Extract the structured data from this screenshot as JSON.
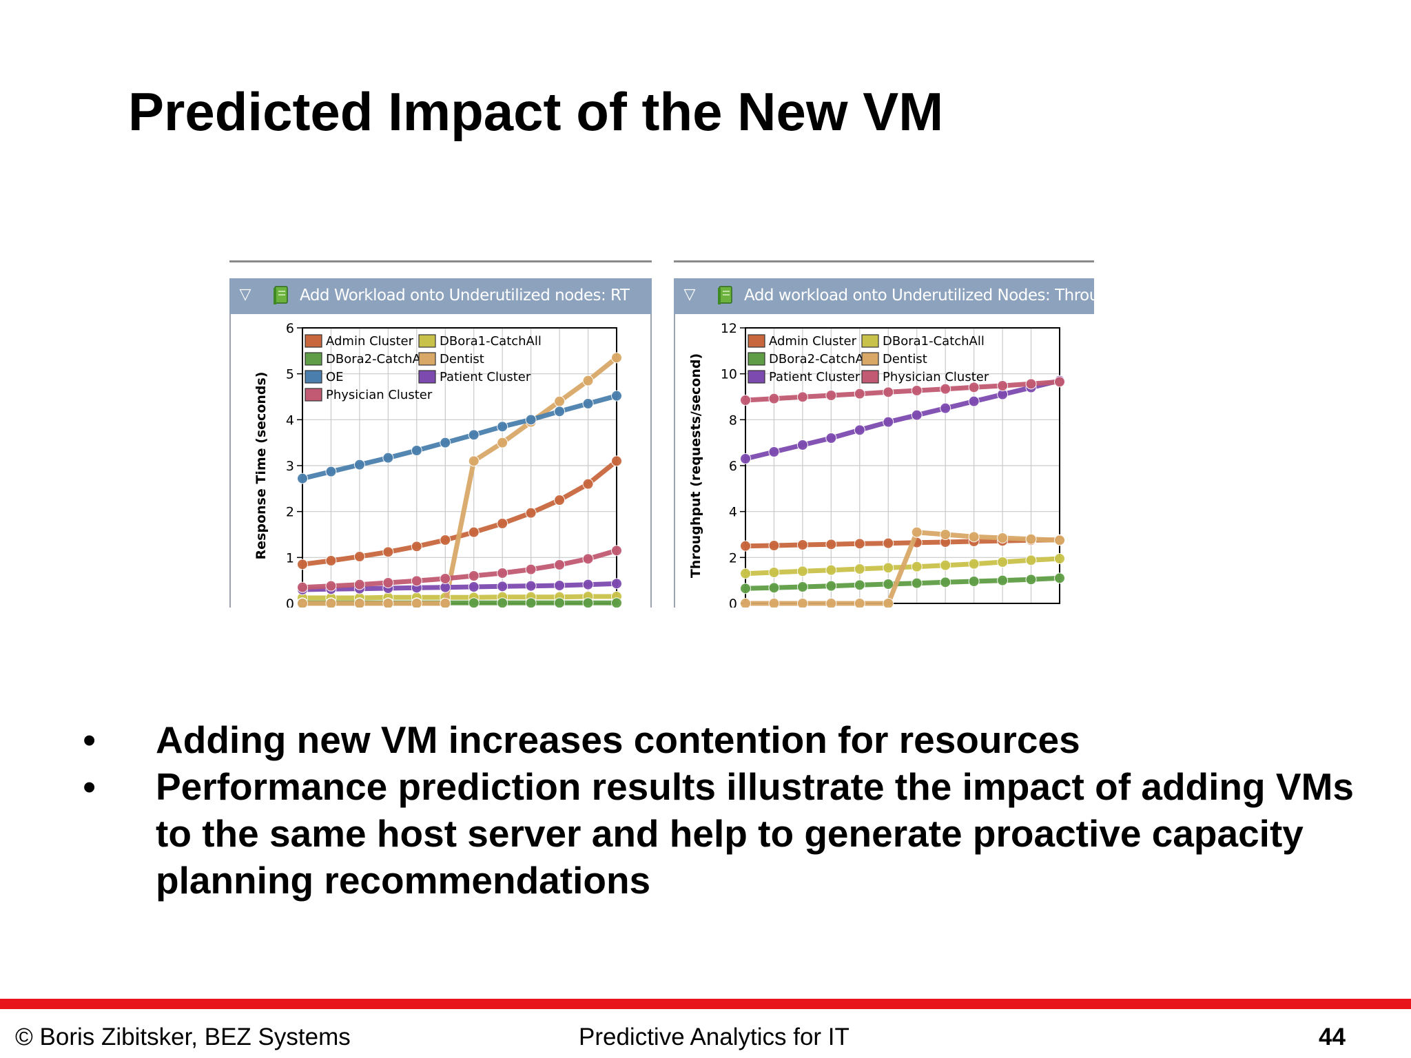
{
  "slide": {
    "title": "Predicted Impact of the New VM",
    "bullets": [
      "Adding new VM increases contention for resources",
      "Performance prediction results illustrate the impact of adding VMs to the same host server and help to generate proactive capacity planning recommendations"
    ],
    "bullet_symbol": "•",
    "footer": {
      "left": "© Boris Zibitsker, BEZ Systems",
      "center": "Predictive Analytics for IT",
      "page_number": "44"
    },
    "colors": {
      "accent_bar": "#e8141c",
      "panel_header": "#8ca2bd"
    }
  },
  "panels": [
    {
      "title": "Add Workload onto Underutilized nodes: RT",
      "toggle_icon": "collapse-triangle-icon",
      "book_icon": "book-icon"
    },
    {
      "title": "Add workload onto Underutilized Nodes: Throughput",
      "toggle_icon": "collapse-triangle-icon",
      "book_icon": "book-icon"
    }
  ],
  "chart_data": [
    {
      "type": "line",
      "ylabel": "Response Time (seconds)",
      "ylim": [
        0,
        6
      ],
      "yticks": [
        "0",
        "1",
        "2",
        "3",
        "4",
        "5",
        "6"
      ],
      "x": [
        1,
        2,
        3,
        4,
        5,
        6,
        7,
        8,
        9,
        10,
        11,
        12
      ],
      "grid": true,
      "legend_position": "top-left",
      "series": [
        {
          "name": "Admin Cluster",
          "color": "#c8673e",
          "values": [
            0.85,
            0.93,
            1.02,
            1.12,
            1.24,
            1.38,
            1.55,
            1.74,
            1.97,
            2.25,
            2.6,
            3.1
          ]
        },
        {
          "name": "DBora1-CatchAll",
          "color": "#c9c24a",
          "values": [
            0.12,
            0.12,
            0.12,
            0.13,
            0.13,
            0.13,
            0.13,
            0.14,
            0.14,
            0.14,
            0.15,
            0.15
          ]
        },
        {
          "name": "DBora2-CatchAll",
          "color": "#5f9e46",
          "values": [
            0.01,
            0.01,
            0.01,
            0.01,
            0.01,
            0.01,
            0.01,
            0.01,
            0.01,
            0.01,
            0.01,
            0.01
          ]
        },
        {
          "name": "Dentist",
          "color": "#d9a867",
          "values": [
            0.0,
            0.0,
            0.0,
            0.0,
            0.0,
            0.0,
            3.1,
            3.5,
            3.95,
            4.4,
            4.85,
            5.35
          ]
        },
        {
          "name": "OE",
          "color": "#4a7fad",
          "values": [
            2.72,
            2.87,
            3.02,
            3.17,
            3.33,
            3.5,
            3.67,
            3.85,
            4.0,
            4.18,
            4.35,
            4.52
          ]
        },
        {
          "name": "Patient Cluster",
          "color": "#7d4bb0",
          "values": [
            0.3,
            0.31,
            0.32,
            0.33,
            0.34,
            0.35,
            0.36,
            0.37,
            0.38,
            0.39,
            0.41,
            0.43
          ]
        },
        {
          "name": "Physician Cluster",
          "color": "#c15a72",
          "values": [
            0.35,
            0.38,
            0.41,
            0.45,
            0.49,
            0.54,
            0.6,
            0.66,
            0.74,
            0.84,
            0.97,
            1.15
          ]
        }
      ]
    },
    {
      "type": "line",
      "ylabel": "Throughput (requests/second)",
      "ylim": [
        0,
        12
      ],
      "yticks": [
        "0",
        "2",
        "4",
        "6",
        "8",
        "10",
        "12"
      ],
      "x": [
        1,
        2,
        3,
        4,
        5,
        6,
        7,
        8,
        9,
        10,
        11,
        12
      ],
      "grid": true,
      "legend_position": "top-left",
      "series": [
        {
          "name": "Admin Cluster",
          "color": "#c8673e",
          "values": [
            2.5,
            2.52,
            2.55,
            2.57,
            2.6,
            2.62,
            2.65,
            2.67,
            2.7,
            2.72,
            2.75,
            2.77
          ]
        },
        {
          "name": "DBora1-CatchAll",
          "color": "#c9c24a",
          "values": [
            1.3,
            1.35,
            1.4,
            1.45,
            1.5,
            1.55,
            1.6,
            1.66,
            1.72,
            1.8,
            1.88,
            1.95
          ]
        },
        {
          "name": "DBora2-CatchAll",
          "color": "#5f9e46",
          "values": [
            0.65,
            0.68,
            0.72,
            0.76,
            0.8,
            0.84,
            0.88,
            0.92,
            0.96,
            1.0,
            1.04,
            1.1
          ]
        },
        {
          "name": "Dentist",
          "color": "#d9a867",
          "values": [
            0.0,
            0.0,
            0.0,
            0.0,
            0.0,
            0.0,
            3.1,
            3.0,
            2.9,
            2.85,
            2.8,
            2.75
          ]
        },
        {
          "name": "Patient Cluster",
          "color": "#7d4bb0",
          "values": [
            6.3,
            6.6,
            6.9,
            7.2,
            7.55,
            7.9,
            8.2,
            8.5,
            8.8,
            9.1,
            9.4,
            9.7
          ]
        },
        {
          "name": "Physician Cluster",
          "color": "#c15a72",
          "values": [
            8.85,
            8.92,
            8.99,
            9.06,
            9.13,
            9.2,
            9.27,
            9.34,
            9.41,
            9.48,
            9.56,
            9.65
          ]
        }
      ]
    }
  ]
}
